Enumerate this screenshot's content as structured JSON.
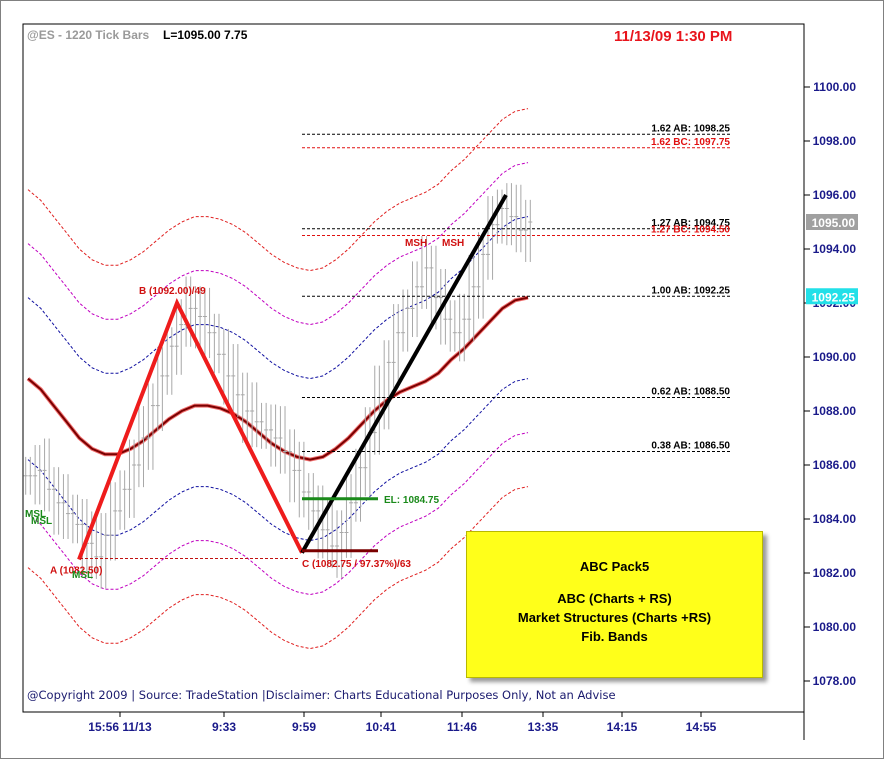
{
  "header": {
    "symbol": "@ES - 1220 Tick Bars",
    "last": "L=1095.00  7.75",
    "stamp": "11/13/09 1:30 PM"
  },
  "copyright": "@Copyright 2009 | Source: TradeStation |Disclaimer: Charts Educational Purposes Only, Not an Advise",
  "infobox": {
    "title": "ABC Pack5",
    "line1": "ABC (Charts + RS)",
    "line2": "Market Structures (Charts +RS)",
    "line3": "Fib. Bands"
  },
  "colors": {
    "abc_leg": "#ee1c1c",
    "cd_leg": "#000000",
    "fib_ab": "#000000",
    "fib_bc": "#e01010",
    "el_line": "#1a8a1a",
    "center_band": "#7a0000",
    "axis_text": "#1a1a8a",
    "last_badge": "#a0a0a0",
    "level_badge": "#22e0e8"
  },
  "chart_data": {
    "type": "line",
    "title": "@ES - 1220 Tick Bars",
    "ylim": [
      1077.0,
      1102.0
    ],
    "y_ticks": [
      "1100.00",
      "1098.00",
      "1096.00",
      "1094.00",
      "1092.00",
      "1090.00",
      "1088.00",
      "1086.00",
      "1084.00",
      "1082.00",
      "1080.00",
      "1078.00"
    ],
    "x_ticks": [
      "15:56 11/13",
      "9:33",
      "9:59",
      "10:41",
      "11:46",
      "13:35",
      "14:15",
      "14:55"
    ],
    "price_series": [
      1085.6,
      1085.8,
      1085.1,
      1084.6,
      1084.2,
      1083.8,
      1083.1,
      1082.6,
      1083.4,
      1084.3,
      1085.1,
      1086.0,
      1087.0,
      1088.2,
      1089.3,
      1090.4,
      1091.2,
      1091.8,
      1091.5,
      1090.9,
      1090.1,
      1089.3,
      1088.6,
      1088.0,
      1087.6,
      1087.3,
      1087.0,
      1086.5,
      1085.8,
      1085.0,
      1084.3,
      1083.6,
      1083.0,
      1083.5,
      1084.6,
      1085.9,
      1087.2,
      1088.5,
      1089.8,
      1090.9,
      1091.8,
      1092.6,
      1093.3,
      1092.2,
      1091.4,
      1090.9,
      1091.4,
      1092.6,
      1093.8,
      1094.9,
      1095.5,
      1095.2,
      1094.7,
      1095.0
    ],
    "center_band": [
      1089.2,
      1088.8,
      1088.2,
      1087.6,
      1087.0,
      1086.6,
      1086.4,
      1086.4,
      1086.6,
      1086.9,
      1087.3,
      1087.7,
      1088.0,
      1088.2,
      1088.2,
      1088.1,
      1087.9,
      1087.6,
      1087.2,
      1086.8,
      1086.5,
      1086.3,
      1086.2,
      1086.3,
      1086.6,
      1087.0,
      1087.5,
      1088.0,
      1088.4,
      1088.7,
      1088.9,
      1089.1,
      1089.4,
      1089.9,
      1090.3,
      1090.8,
      1091.3,
      1091.8,
      1092.1,
      1092.2
    ],
    "annotations": {
      "A": {
        "label": "A (1082.50)",
        "value": 1082.5
      },
      "B": {
        "label": "B (1092.00)/49",
        "value": 1092.0
      },
      "C": {
        "label": "C (1082.75 / 97.37%)/63",
        "value": 1082.75
      },
      "D": {
        "value": 1096.0
      },
      "EL": {
        "label": "EL: 1084.75",
        "value": 1084.75
      },
      "MSH": [
        "MSH",
        "MSH"
      ],
      "MSL": [
        "MSL",
        "MSL",
        "MSL"
      ]
    },
    "fib_levels": [
      {
        "label": "1.62 AB: 1098.25",
        "value": 1098.25,
        "kind": "ab"
      },
      {
        "label": "1.62 BC: 1097.75",
        "value": 1097.75,
        "kind": "bc"
      },
      {
        "label": "1.27 AB: 1094.75",
        "value": 1094.75,
        "kind": "ab"
      },
      {
        "label": "1.27 BC: 1094.50",
        "value": 1094.5,
        "kind": "bc"
      },
      {
        "label": "1.00 AB: 1092.25",
        "value": 1092.25,
        "kind": "ab"
      },
      {
        "label": "0.62 AB: 1088.50",
        "value": 1088.5,
        "kind": "ab"
      },
      {
        "label": "0.38 AB: 1086.50",
        "value": 1086.5,
        "kind": "ab"
      }
    ],
    "price_badges": [
      {
        "label": "1095.00",
        "value": 1095.0,
        "kind": "last"
      },
      {
        "label": "1092.25",
        "value": 1092.25,
        "kind": "level"
      }
    ]
  }
}
